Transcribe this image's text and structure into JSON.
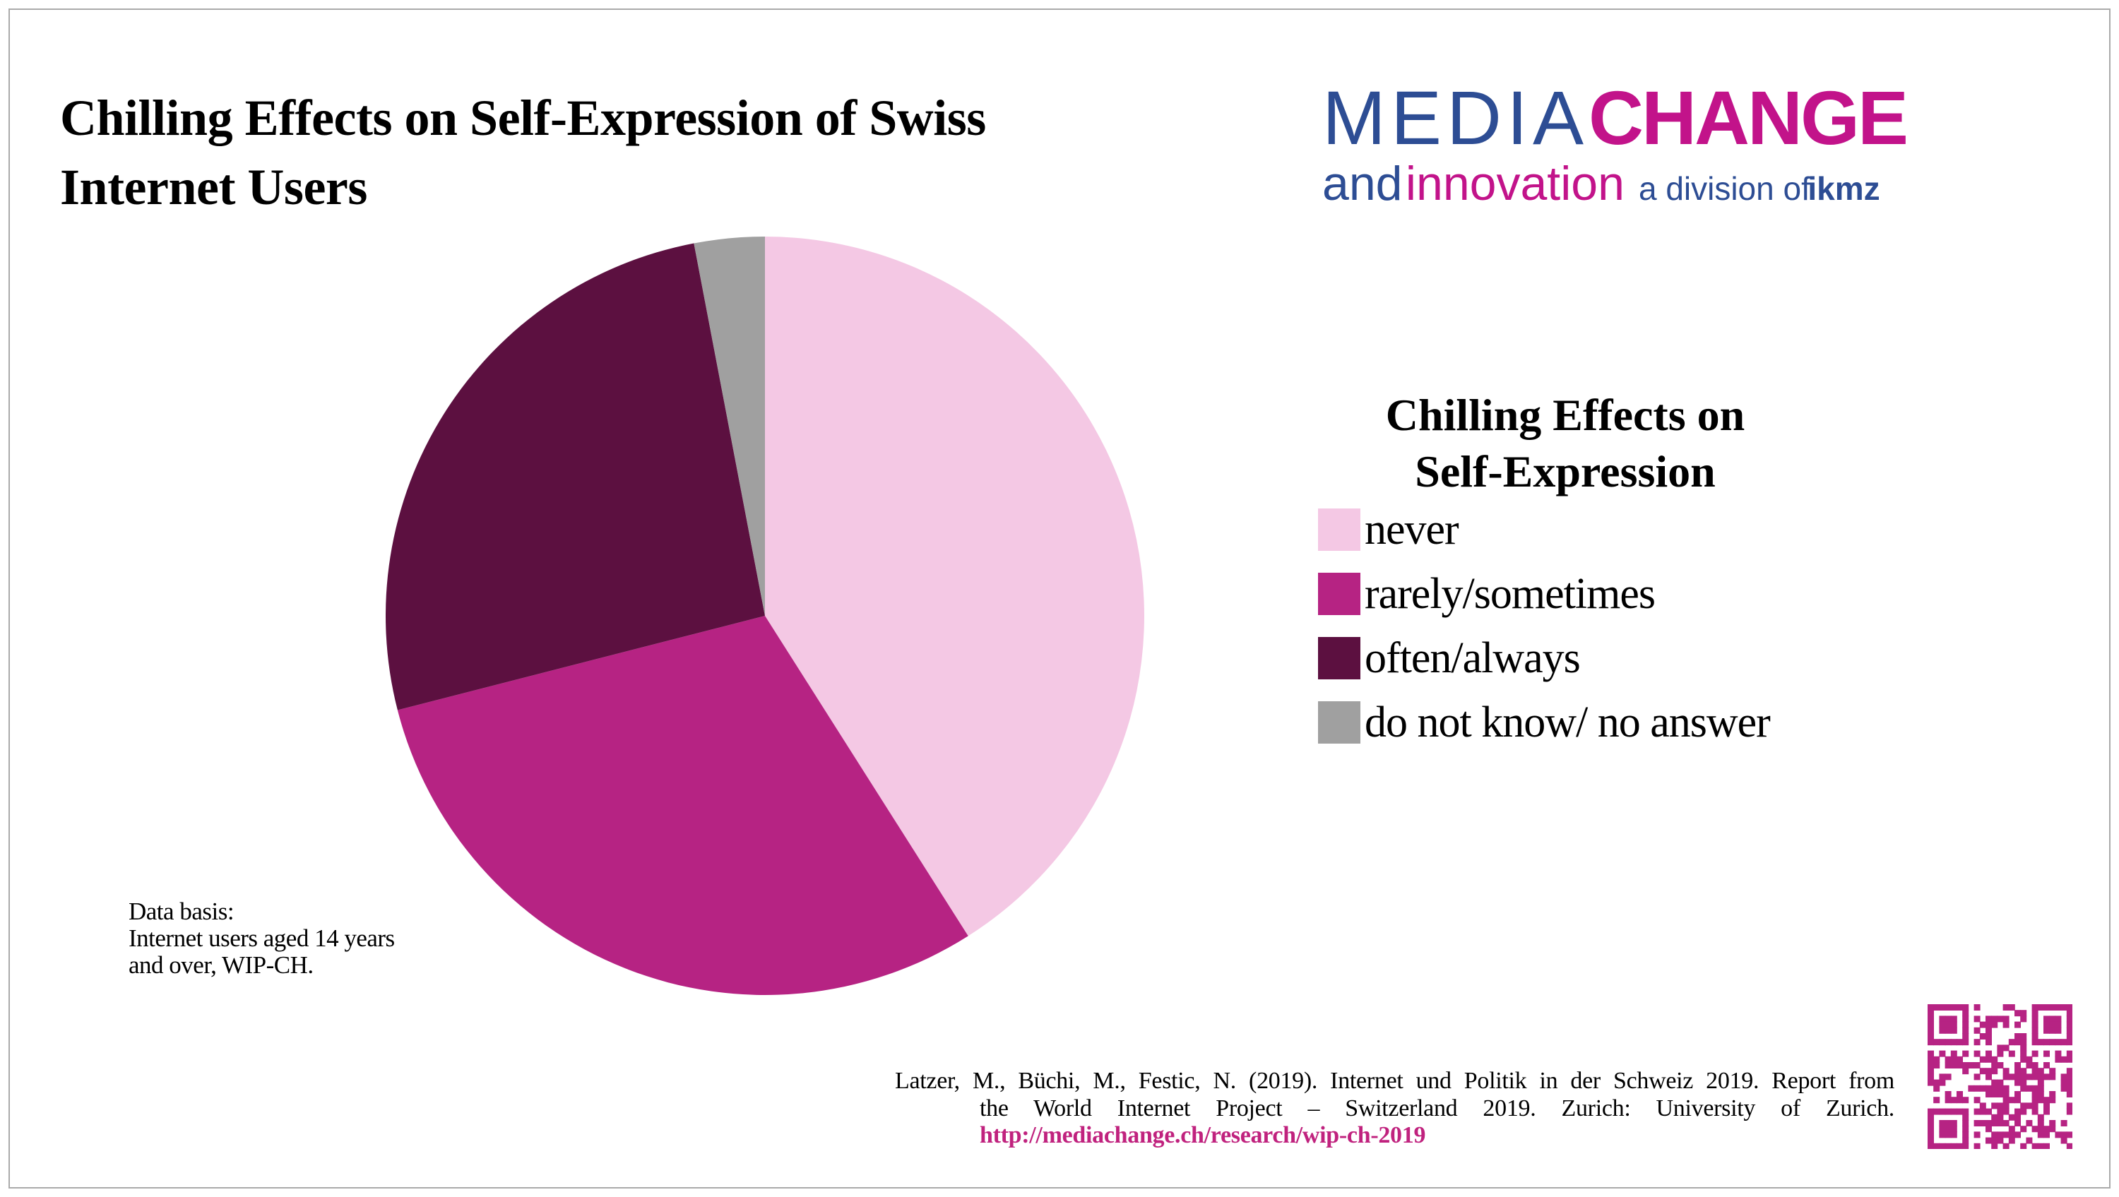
{
  "header": {
    "title_lines": [
      "Chilling Effects on Self-Expression of Swiss",
      "Internet Users"
    ]
  },
  "logo": {
    "media": "MEDIA",
    "change": "CHANGE",
    "and": "and",
    "innovation": "innovation",
    "division": "a division of",
    "ikmz": "ikmz",
    "blue": "#2d4d94",
    "magenta": "#c2138a"
  },
  "chart_data": {
    "type": "pie",
    "title": "Chilling Effects on Self-Expression",
    "legend_title_lines": [
      "Chilling Effects on",
      "Self-Expression"
    ],
    "labels": [
      "never",
      "rarely/sometimes",
      "often/always",
      "do not know/ no answer"
    ],
    "values": [
      41,
      30,
      26,
      3
    ],
    "colors": [
      "#f4c8e4",
      "#b62383",
      "#5c1040",
      "#a0a0a0"
    ],
    "start_angle_deg": 0,
    "direction": "clockwise",
    "legend_position": "right"
  },
  "data_basis": {
    "lines": [
      "Data basis:",
      "Internet users aged 14 years",
      "and over, WIP-CH."
    ]
  },
  "citation": {
    "line1": "Latzer, M., Büchi, M., Festic, N. (2019). Internet und Politik in der Schweiz 2019. Report from",
    "line2": "the World Internet Project – Switzerland 2019. Zurich: University of Zurich.",
    "url": "http://mediachange.ch/research/wip-ch-2019",
    "url_color": "#c0227e"
  },
  "qr": {
    "color": "#b62383"
  }
}
